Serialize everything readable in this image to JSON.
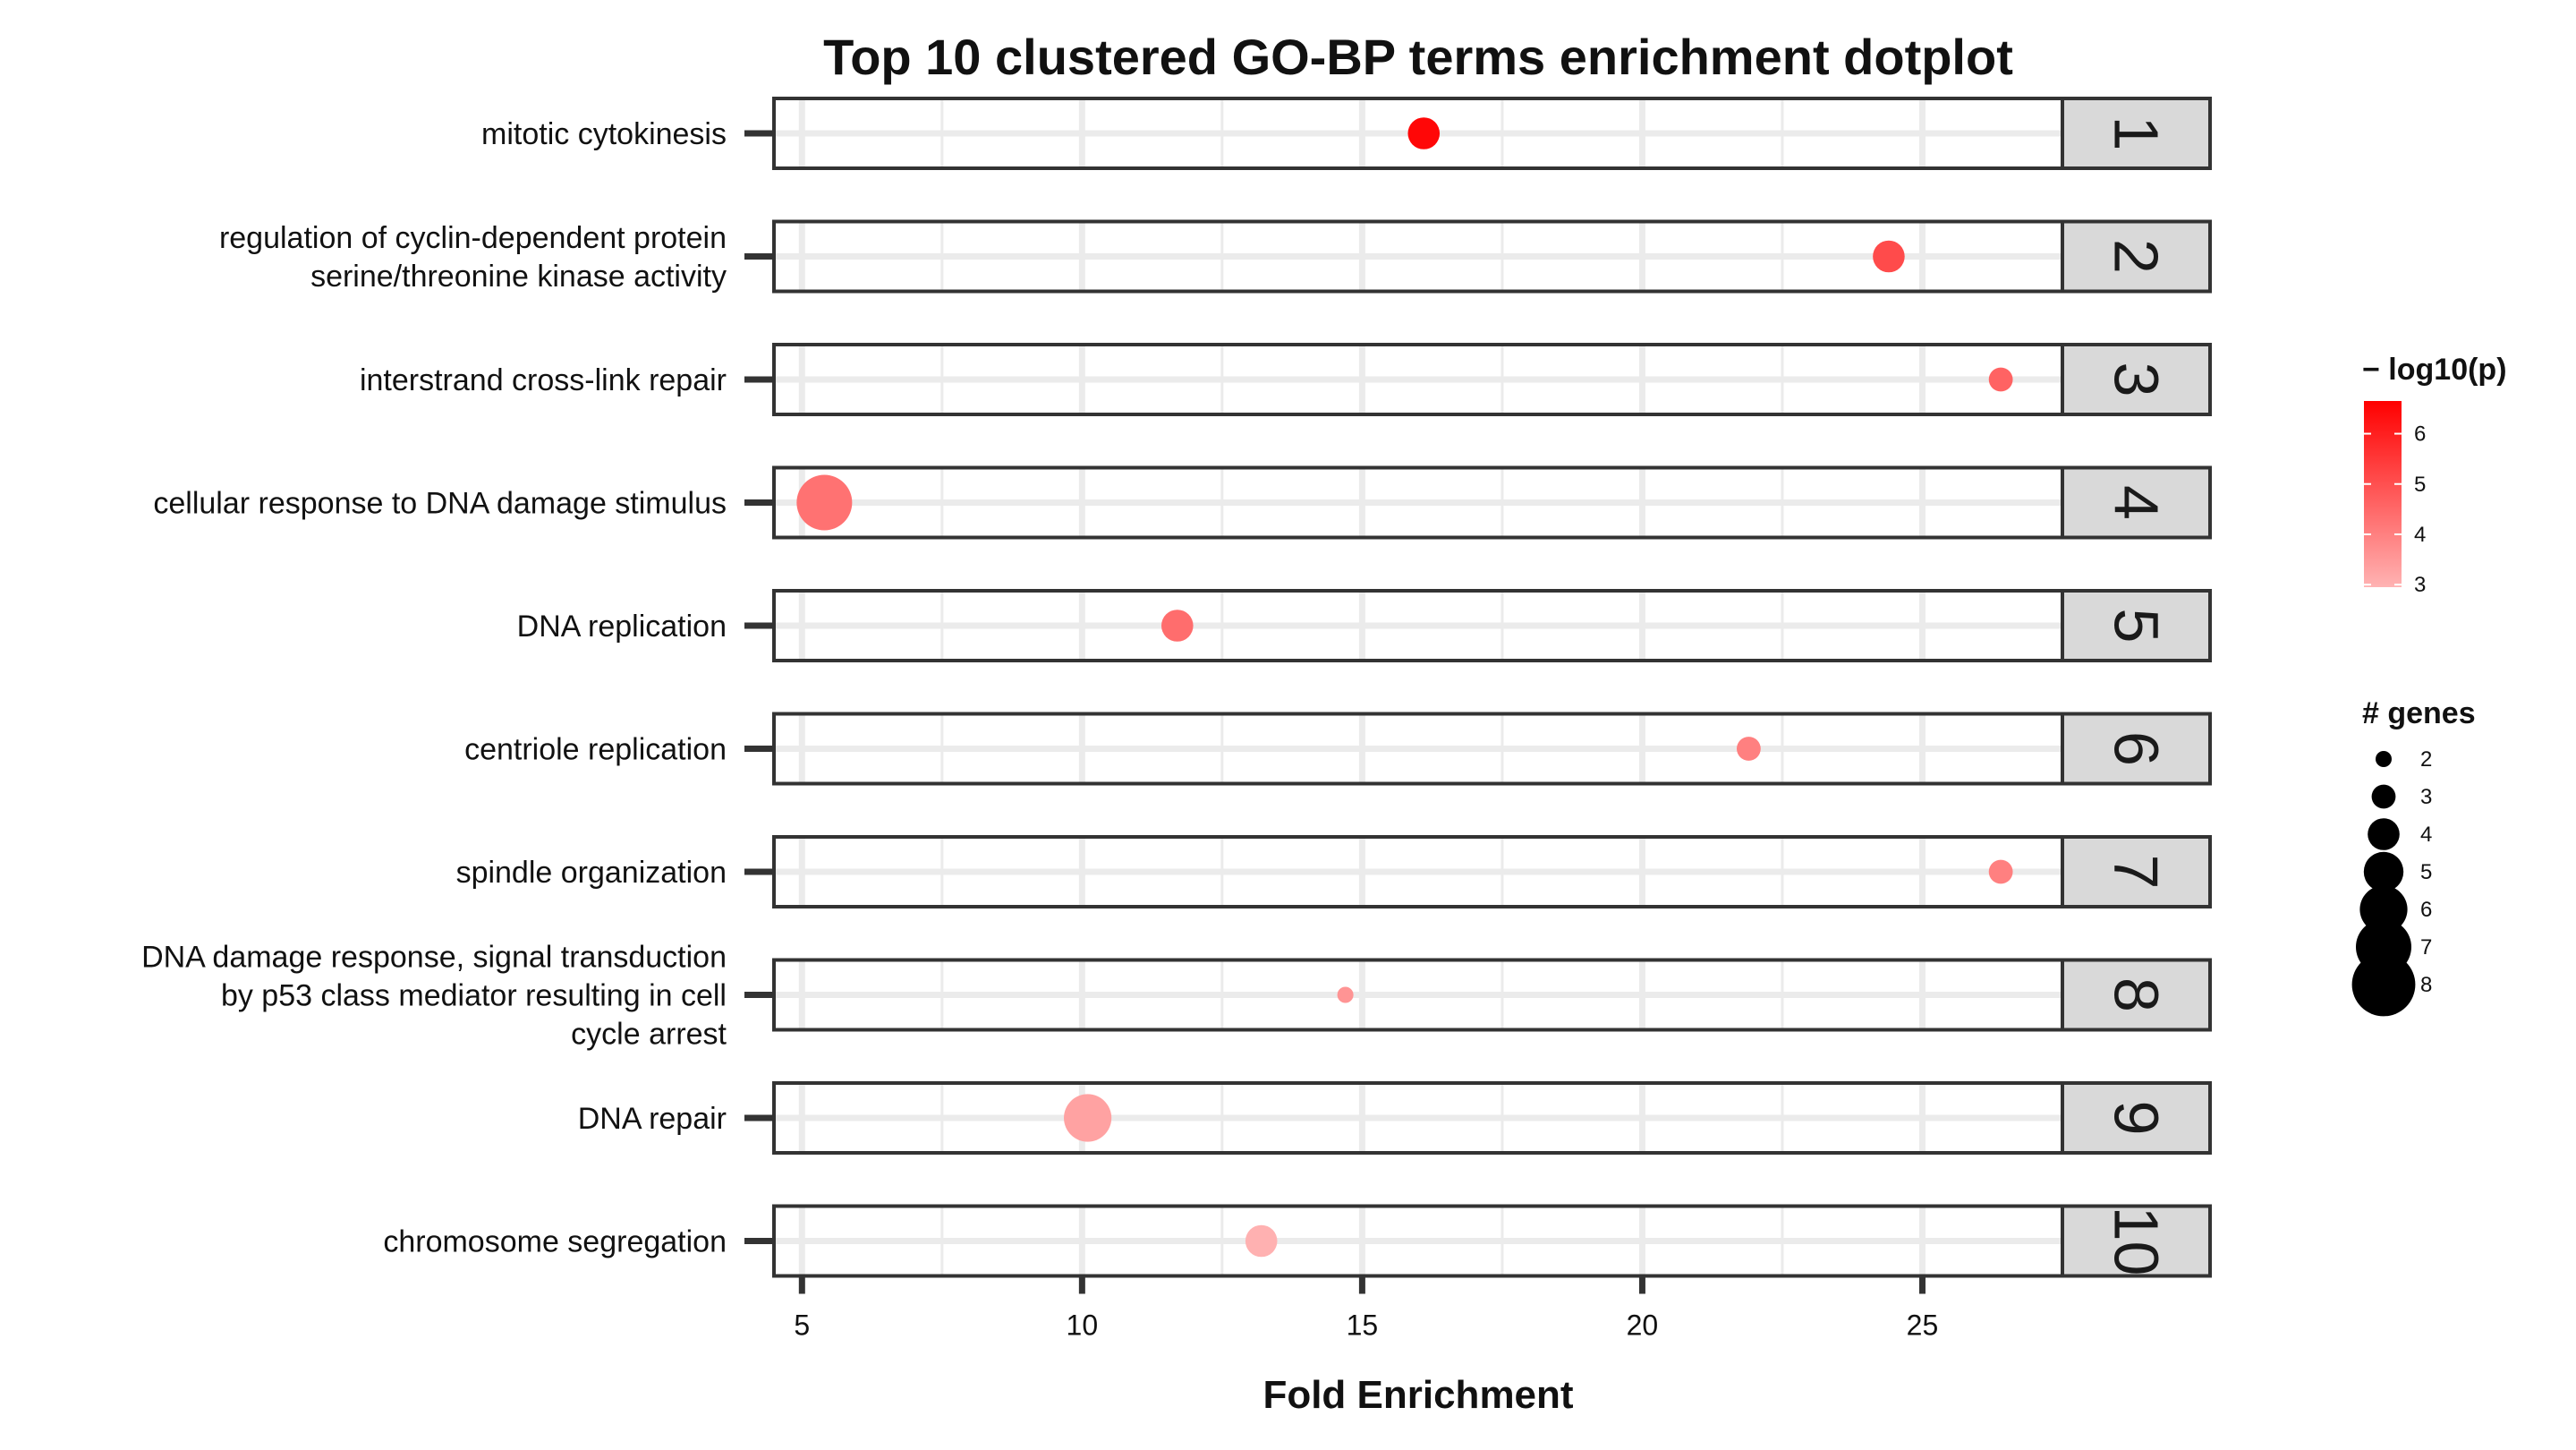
{
  "chart_data": {
    "type": "scatter",
    "title": "Top 10 clustered GO-BP terms enrichment dotplot",
    "xlabel": "Fold Enrichment",
    "ylabel": "",
    "xlim": [
      4.5,
      27.5
    ],
    "x_ticks": [
      5,
      10,
      15,
      20,
      25
    ],
    "grid": true,
    "facets": [
      "1",
      "2",
      "3",
      "4",
      "5",
      "6",
      "7",
      "8",
      "9",
      "10"
    ],
    "terms": [
      {
        "lines": [
          "mitotic cytokinesis"
        ],
        "fold_enrichment": 16.1,
        "genes": 4,
        "neg_log10_p": 6.5
      },
      {
        "lines": [
          "regulation of cyclin-dependent protein",
          "serine/threonine kinase activity"
        ],
        "fold_enrichment": 24.4,
        "genes": 4,
        "neg_log10_p": 5.1
      },
      {
        "lines": [
          "interstrand cross-link repair"
        ],
        "fold_enrichment": 26.4,
        "genes": 3,
        "neg_log10_p": 4.6
      },
      {
        "lines": [
          "cellular response to DNA damage stimulus"
        ],
        "fold_enrichment": 5.4,
        "genes": 7,
        "neg_log10_p": 4.3
      },
      {
        "lines": [
          "DNA replication"
        ],
        "fold_enrichment": 11.7,
        "genes": 4,
        "neg_log10_p": 4.4
      },
      {
        "lines": [
          "centriole replication"
        ],
        "fold_enrichment": 21.9,
        "genes": 3,
        "neg_log10_p": 4.0
      },
      {
        "lines": [
          "spindle organization"
        ],
        "fold_enrichment": 26.4,
        "genes": 3,
        "neg_log10_p": 4.0
      },
      {
        "lines": [
          "DNA damage response, signal transduction",
          "by p53 class mediator resulting in cell",
          "cycle arrest"
        ],
        "fold_enrichment": 14.7,
        "genes": 2,
        "neg_log10_p": 3.6
      },
      {
        "lines": [
          "DNA repair"
        ],
        "fold_enrichment": 10.1,
        "genes": 6,
        "neg_log10_p": 3.3
      },
      {
        "lines": [
          "chromosome segregation"
        ],
        "fold_enrichment": 13.2,
        "genes": 4,
        "neg_log10_p": 3.0
      }
    ],
    "color_legend": {
      "title": "− log10(p)",
      "ticks": [
        3,
        4,
        5,
        6
      ],
      "range": [
        2.95,
        6.65
      ],
      "low_color": "#ffb3b3",
      "high_color": "#ff0000"
    },
    "size_legend": {
      "title": "# genes",
      "values": [
        2,
        3,
        4,
        5,
        6,
        7,
        8
      ]
    },
    "legend_position": "right"
  }
}
